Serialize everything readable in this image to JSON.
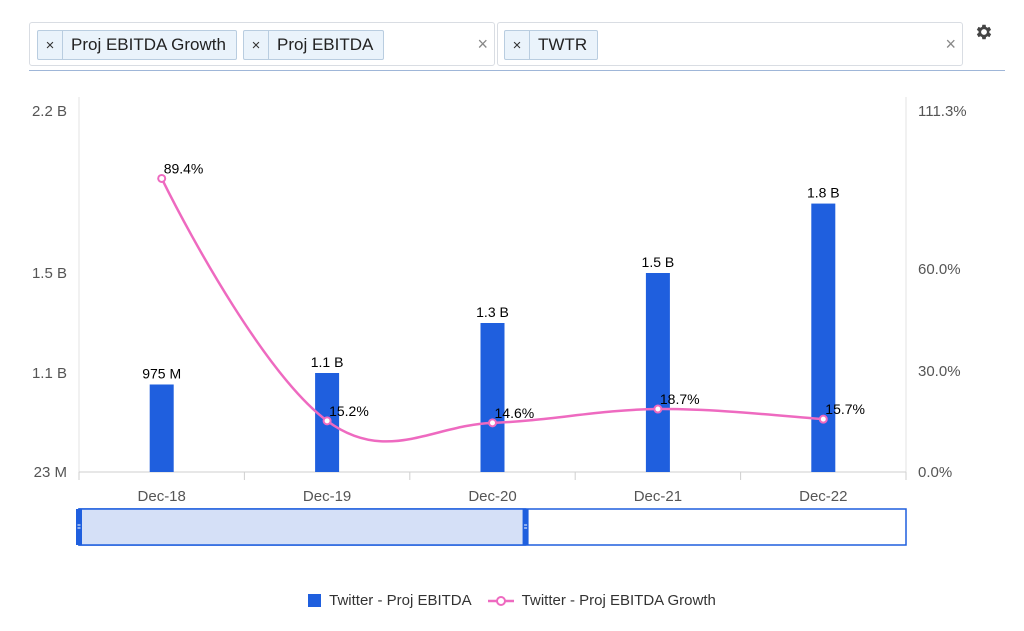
{
  "filters": {
    "metrics": [
      {
        "label": "Proj EBITDA Growth",
        "remove": "×"
      },
      {
        "label": "Proj EBITDA",
        "remove": "×"
      }
    ],
    "tickers": [
      {
        "label": "TWTR",
        "remove": "×"
      }
    ],
    "clear": "×"
  },
  "colors": {
    "bar": "#1f5fde",
    "line": "#ee6ac0",
    "navigator_fill": "#d5e0f7",
    "navigator_border": "#1f5fde"
  },
  "chart_data": {
    "type": "bar+line",
    "categories": [
      "Dec-18",
      "Dec-19",
      "Dec-20",
      "Dec-21",
      "Dec-22"
    ],
    "series": [
      {
        "name": "Twitter - Proj EBITDA",
        "type": "bar",
        "axis": "left",
        "values": [
          0.975,
          1.1,
          1.3,
          1.5,
          1.8
        ],
        "labels": [
          "975 M",
          "1.1 B",
          "1.3 B",
          "1.5 B",
          "1.8 B"
        ]
      },
      {
        "name": "Twitter - Proj EBITDA Growth",
        "type": "line",
        "axis": "right",
        "values": [
          89.4,
          15.2,
          14.6,
          18.7,
          15.7
        ],
        "labels": [
          "89.4%",
          "15.2%",
          "14.6%",
          "18.7%",
          "15.7%"
        ]
      }
    ],
    "y_left": {
      "range": [
        0.023,
        2.2
      ],
      "ticks": [
        {
          "value": 0.023,
          "label": "23 M"
        },
        {
          "value": 1.1,
          "label": "1.1 B"
        },
        {
          "value": 1.5,
          "label": "1.5 B"
        },
        {
          "value": 2.2,
          "label": "2.2 B"
        }
      ]
    },
    "y_right": {
      "range": [
        0,
        111.3
      ],
      "ticks": [
        {
          "value": 0,
          "label": "0.0%"
        },
        {
          "value": 30,
          "label": "30.0%"
        },
        {
          "value": 60,
          "label": "60.0%"
        },
        {
          "value": 111.3,
          "label": "111.3%"
        }
      ]
    },
    "navigator": {
      "start_fraction": 0.0,
      "end_fraction": 0.54
    },
    "legend_position": "bottom-center"
  }
}
